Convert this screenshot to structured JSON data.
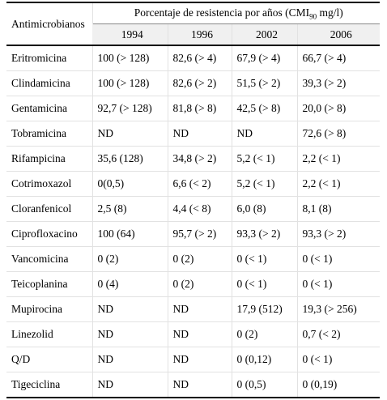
{
  "header": {
    "row_label": "Antimicrobianos",
    "group_title": {
      "before": "Porcentaje de resistencia por años (CMI",
      "sub": "90",
      "after": " mg/l)"
    },
    "years": [
      "1994",
      "1996",
      "2002",
      "2006"
    ]
  },
  "table": {
    "rows": [
      [
        "Eritromicina",
        "100 (> 128)",
        "82,6 (> 4)",
        "67,9 (> 4)",
        "66,7 (> 4)"
      ],
      [
        "Clindamicina",
        "100 (> 128)",
        "82,6 (> 2)",
        "51,5 (> 2)",
        "39,3 (> 2)"
      ],
      [
        "Gentamicina",
        "92,7 (> 128)",
        "81,8 (> 8)",
        "42,5 (> 8)",
        "20,0 (> 8)"
      ],
      [
        "Tobramicina",
        "ND",
        "ND",
        "ND",
        "72,6 (> 8)"
      ],
      [
        "Rifampicina",
        "35,6 (128)",
        "34,8 (> 2)",
        "5,2 (< 1)",
        "2,2 (< 1)"
      ],
      [
        "Cotrimoxazol",
        "0(0,5)",
        "6,6 (< 2)",
        "5,2 (< 1)",
        "2,2 (< 1)"
      ],
      [
        "Cloranfenicol",
        "2,5 (8)",
        "4,4 (< 8)",
        "6,0 (8)",
        "8,1 (8)"
      ],
      [
        "Ciprofloxacino",
        "100 (64)",
        "95,7 (> 2)",
        "93,3 (> 2)",
        "93,3 (> 2)"
      ],
      [
        "Vancomicina",
        "0 (2)",
        "0 (2)",
        "0 (< 1)",
        "0 (< 1)"
      ],
      [
        "Teicoplanina",
        "0 (4)",
        "0 (2)",
        "0 (< 1)",
        "0 (< 1)"
      ],
      [
        "Mupirocina",
        "ND",
        "ND",
        "17,9 (512)",
        "19,3 (> 256)"
      ],
      [
        "Linezolid",
        "ND",
        "ND",
        "0 (2)",
        "0,7 (< 2)"
      ],
      [
        "Q/D",
        "ND",
        "ND",
        "0 (0,12)",
        "0 (< 1)"
      ],
      [
        "Tigeciclina",
        "ND",
        "ND",
        "0 (0,5)",
        "0 (0,19)"
      ]
    ]
  }
}
